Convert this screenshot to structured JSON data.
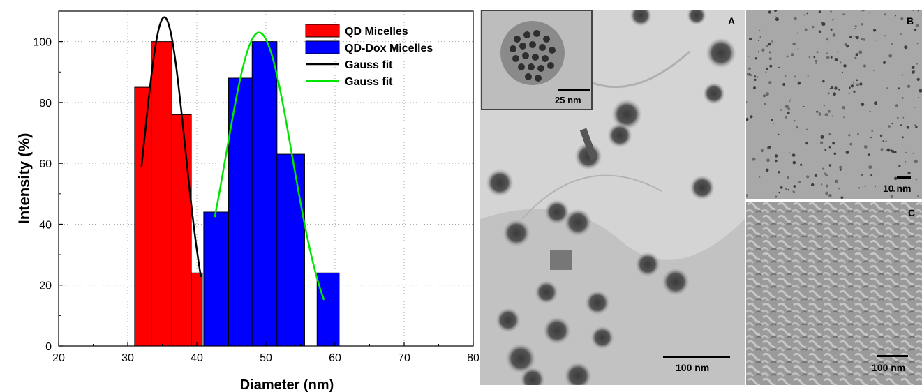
{
  "chart_data": {
    "type": "bar",
    "xlabel": "Diameter (nm)",
    "ylabel": "Intensity (%)",
    "xlim": [
      20,
      80
    ],
    "ylim": [
      0,
      110
    ],
    "xticks": [
      20,
      30,
      40,
      50,
      60,
      70,
      80
    ],
    "yticks": [
      0,
      20,
      40,
      60,
      80,
      100
    ],
    "grid": true,
    "legend_position": "top-right",
    "series": [
      {
        "name": "QD Micelles",
        "color": "#ff0000",
        "bars": [
          {
            "x0": 31.0,
            "x1": 33.4,
            "value": 85
          },
          {
            "x0": 33.4,
            "x1": 36.4,
            "value": 100
          },
          {
            "x0": 36.4,
            "x1": 39.2,
            "value": 76
          },
          {
            "x0": 39.2,
            "x1": 40.8,
            "value": 24
          }
        ]
      },
      {
        "name": "QD-Dox Micelles",
        "color": "#0000ff",
        "bars": [
          {
            "x0": 41.0,
            "x1": 44.6,
            "value": 44
          },
          {
            "x0": 44.6,
            "x1": 48.0,
            "value": 88
          },
          {
            "x0": 48.0,
            "x1": 51.6,
            "value": 100
          },
          {
            "x0": 51.6,
            "x1": 55.6,
            "value": 63
          },
          {
            "x0": 57.4,
            "x1": 60.6,
            "value": 24
          }
        ]
      },
      {
        "name": "Gauss fit",
        "type": "line",
        "color": "#000000",
        "fit": {
          "center": 35.3,
          "amplitude": 108,
          "sigma": 3.0,
          "x_range": [
            32,
            40.6
          ]
        }
      },
      {
        "name": "Gauss fit",
        "type": "line",
        "color": "#00e600",
        "fit": {
          "center": 49.0,
          "amplitude": 103,
          "sigma": 4.8,
          "x_range": [
            42.6,
            58.4
          ]
        }
      }
    ]
  },
  "images": {
    "panel_a": {
      "letter": "A",
      "scalebar_label": "100 nm",
      "inset_scalebar_label": "25 nm"
    },
    "panel_b": {
      "letter": "B",
      "scalebar_label": "10 nm"
    },
    "panel_c": {
      "letter": "C",
      "scalebar_label": "100 nm"
    }
  }
}
